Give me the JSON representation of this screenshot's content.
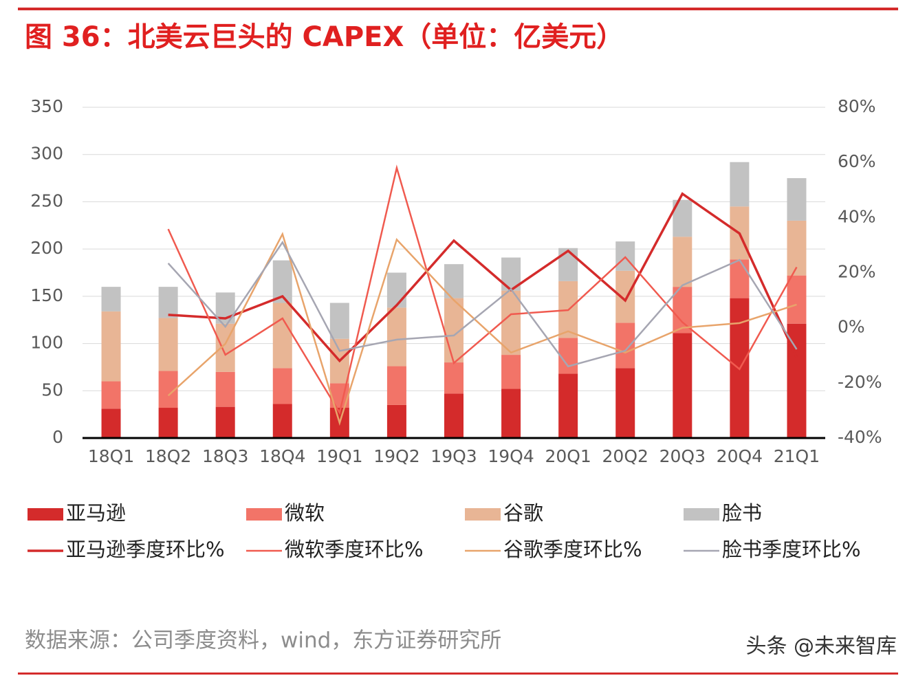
{
  "chart_data": {
    "type": "bar",
    "stacked": true,
    "title": "图 36：北美云巨头的 CAPEX（单位：亿美元）",
    "source": "数据来源：公司季度资料，wind，东方证券研究所",
    "watermark": "头条 @未来智库",
    "categories": [
      "18Q1",
      "18Q2",
      "18Q3",
      "18Q4",
      "19Q1",
      "19Q2",
      "19Q3",
      "19Q4",
      "20Q1",
      "20Q2",
      "20Q3",
      "20Q4",
      "21Q1"
    ],
    "ylim": [
      0,
      350
    ],
    "yticks": [
      0,
      50,
      100,
      150,
      200,
      250,
      300,
      350
    ],
    "y2lim": [
      -40,
      80
    ],
    "y2ticks": [
      {
        "value": -40,
        "label": "-40%"
      },
      {
        "value": -20,
        "label": "-20%"
      },
      {
        "value": 0,
        "label": "0%"
      },
      {
        "value": 20,
        "label": "20%"
      },
      {
        "value": 40,
        "label": "40%"
      },
      {
        "value": 60,
        "label": "60%"
      },
      {
        "value": 80,
        "label": "80%"
      }
    ],
    "grid": true,
    "series": [
      {
        "name": "亚马逊",
        "type": "bar",
        "color": "#d42b2b",
        "values": [
          31,
          32,
          33,
          36,
          32,
          35,
          47,
          52,
          68,
          74,
          111,
          148,
          121
        ]
      },
      {
        "name": "微软",
        "type": "bar",
        "color": "#f27468",
        "values": [
          29,
          39,
          37,
          38,
          26,
          41,
          33,
          36,
          38,
          48,
          49,
          41,
          51
        ]
      },
      {
        "name": "谷歌",
        "type": "bar",
        "color": "#e8b595",
        "values": [
          74,
          56,
          51,
          69,
          47,
          62,
          68,
          68,
          60,
          55,
          53,
          56,
          58
        ]
      },
      {
        "name": "脸书",
        "type": "bar",
        "color": "#c2c2c2",
        "values": [
          26,
          33,
          33,
          45,
          38,
          37,
          36,
          35,
          35,
          31,
          39,
          47,
          45
        ]
      },
      {
        "name": "亚马逊季度环比%",
        "type": "line",
        "axis": "y2",
        "color": "#d42b2b",
        "values": [
          null,
          4.7,
          3.4,
          11.4,
          -12,
          8.2,
          31.6,
          13.7,
          27.9,
          9.9,
          48.6,
          34.2,
          -10.8
        ]
      },
      {
        "name": "微软季度环比%",
        "type": "line",
        "axis": "y2",
        "color": "#f05a4f",
        "values": [
          null,
          35.8,
          -9.8,
          3.4,
          -30.8,
          58,
          -12.8,
          4.9,
          6.4,
          25.6,
          2,
          -15,
          22
        ]
      },
      {
        "name": "谷歌季度环比%",
        "type": "line",
        "axis": "y2",
        "color": "#e8a46b",
        "values": [
          null,
          -24.6,
          -5.8,
          34,
          -34.5,
          32,
          10,
          -9,
          -1.3,
          -9,
          0,
          1.7,
          8.4
        ]
      },
      {
        "name": "脸书季度环比%",
        "type": "line",
        "axis": "y2",
        "color": "#a6a6b2",
        "values": [
          null,
          23.4,
          0.4,
          31,
          -8.4,
          -4.3,
          -2.8,
          14,
          -14,
          -8.3,
          15.4,
          24.6,
          -7.8
        ]
      }
    ]
  }
}
